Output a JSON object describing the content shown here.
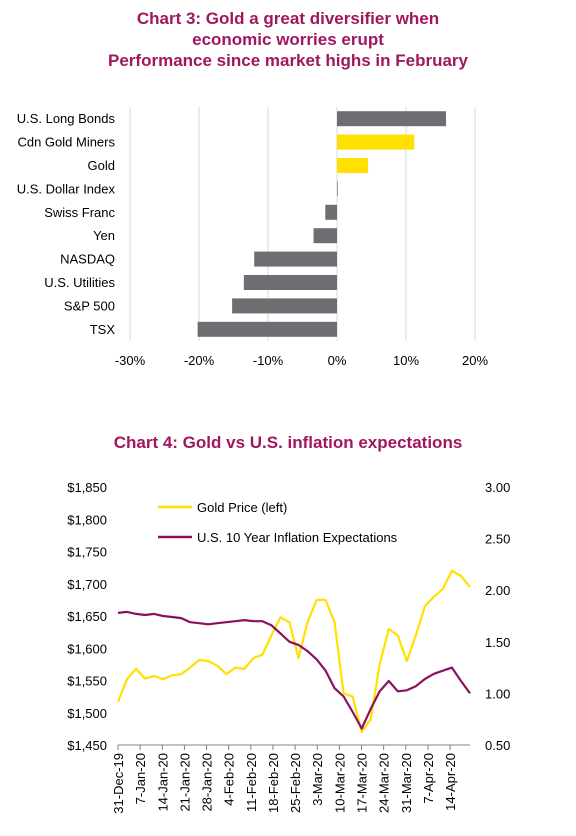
{
  "chart3": {
    "title_lines": [
      "Chart 3: Gold a great diversifier when",
      "economic worries erupt",
      "Performance since market highs in February"
    ]
  },
  "chart4": {
    "title": "Chart 4: Gold vs U.S. inflation expectations"
  },
  "colors": {
    "gray": "#6d6e71",
    "gold": "#ffe000",
    "purple": "#8b1060",
    "title": "#a0175f",
    "grid": "#d9d9d9"
  },
  "chart_data": [
    {
      "type": "bar",
      "orientation": "horizontal",
      "categories": [
        "U.S. Long Bonds",
        "Cdn Gold Miners",
        "Gold",
        "U.S. Dollar Index",
        "Swiss Franc",
        "Yen",
        "NASDAQ",
        "U.S. Utilities",
        "S&P 500",
        "TSX"
      ],
      "values": [
        15.8,
        11.2,
        4.5,
        0.1,
        -1.7,
        -3.4,
        -12.0,
        -13.5,
        -15.2,
        -20.2
      ],
      "bar_colors": [
        "#6d6e71",
        "#ffe000",
        "#ffe000",
        "#6d6e71",
        "#6d6e71",
        "#6d6e71",
        "#6d6e71",
        "#6d6e71",
        "#6d6e71",
        "#6d6e71"
      ],
      "xlim": [
        -30,
        20
      ],
      "xticks": [
        -30,
        -20,
        -10,
        0,
        10,
        20
      ],
      "xtick_labels": [
        "-30%",
        "-20%",
        "-10%",
        "0%",
        "10%",
        "20%"
      ],
      "grid": true
    },
    {
      "type": "line",
      "x": [
        "31-Dec-19",
        "3-Jan-20",
        "6-Jan-20",
        "9-Jan-20",
        "12-Jan-20",
        "15-Jan-20",
        "18-Jan-20",
        "21-Jan-20",
        "24-Jan-20",
        "27-Jan-20",
        "30-Jan-20",
        "2-Feb-20",
        "5-Feb-20",
        "8-Feb-20",
        "11-Feb-20",
        "14-Feb-20",
        "17-Feb-20",
        "20-Feb-20",
        "23-Feb-20",
        "26-Feb-20",
        "29-Feb-20",
        "3-Mar-20",
        "6-Mar-20",
        "9-Mar-20",
        "11-Mar-20",
        "13-Mar-20",
        "16-Mar-20",
        "18-Mar-20",
        "20-Mar-20",
        "23-Mar-20",
        "25-Mar-20",
        "27-Mar-20",
        "30-Mar-20",
        "2-Apr-20",
        "5-Apr-20",
        "8-Apr-20",
        "11-Apr-20",
        "14-Apr-20",
        "16-Apr-20",
        "19-Apr-20"
      ],
      "x_tick_labels": [
        "31-Dec-19",
        "7-Jan-20",
        "14-Jan-20",
        "21-Jan-20",
        "28-Jan-20",
        "4-Feb-20",
        "11-Feb-20",
        "18-Feb-20",
        "25-Feb-20",
        "3-Mar-20",
        "10-Mar-20",
        "17-Mar-20",
        "24-Mar-20",
        "31-Mar-20",
        "7-Apr-20",
        "14-Apr-20"
      ],
      "series": [
        {
          "name": "Gold Price (left)",
          "axis": "left",
          "color": "#ffe000",
          "values": [
            1517,
            1552,
            1568,
            1553,
            1557,
            1552,
            1558,
            1560,
            1570,
            1582,
            1580,
            1573,
            1560,
            1570,
            1568,
            1585,
            1590,
            1620,
            1648,
            1640,
            1585,
            1640,
            1675,
            1675,
            1640,
            1530,
            1525,
            1470,
            1490,
            1575,
            1630,
            1620,
            1580,
            1620,
            1665,
            1680,
            1692,
            1720,
            1712,
            1695
          ]
        },
        {
          "name": "U.S. 10 Year Inflation Expectations",
          "axis": "right",
          "color": "#8b1060",
          "values": [
            1.78,
            1.79,
            1.77,
            1.76,
            1.77,
            1.75,
            1.74,
            1.73,
            1.69,
            1.68,
            1.67,
            1.68,
            1.69,
            1.7,
            1.71,
            1.7,
            1.7,
            1.66,
            1.58,
            1.5,
            1.47,
            1.41,
            1.33,
            1.22,
            1.05,
            0.97,
            0.82,
            0.66,
            0.85,
            1.02,
            1.12,
            1.02,
            1.03,
            1.07,
            1.14,
            1.19,
            1.22,
            1.25,
            1.12,
            1.0
          ]
        }
      ],
      "y_left": {
        "ylim": [
          1450,
          1850
        ],
        "ticks": [
          1450,
          1500,
          1550,
          1600,
          1650,
          1700,
          1750,
          1800,
          1850
        ],
        "tick_labels": [
          "$1,450",
          "$1,500",
          "$1,550",
          "$1,600",
          "$1,650",
          "$1,700",
          "$1,750",
          "$1,800",
          "$1,850"
        ]
      },
      "y_right": {
        "ylim": [
          0.5,
          3.0
        ],
        "ticks": [
          0.5,
          1.0,
          1.5,
          2.0,
          2.5,
          3.0
        ],
        "tick_labels": [
          "0.50",
          "1.00",
          "1.50",
          "2.00",
          "2.50",
          "3.00"
        ]
      },
      "legend": "top-left",
      "grid": false
    }
  ]
}
